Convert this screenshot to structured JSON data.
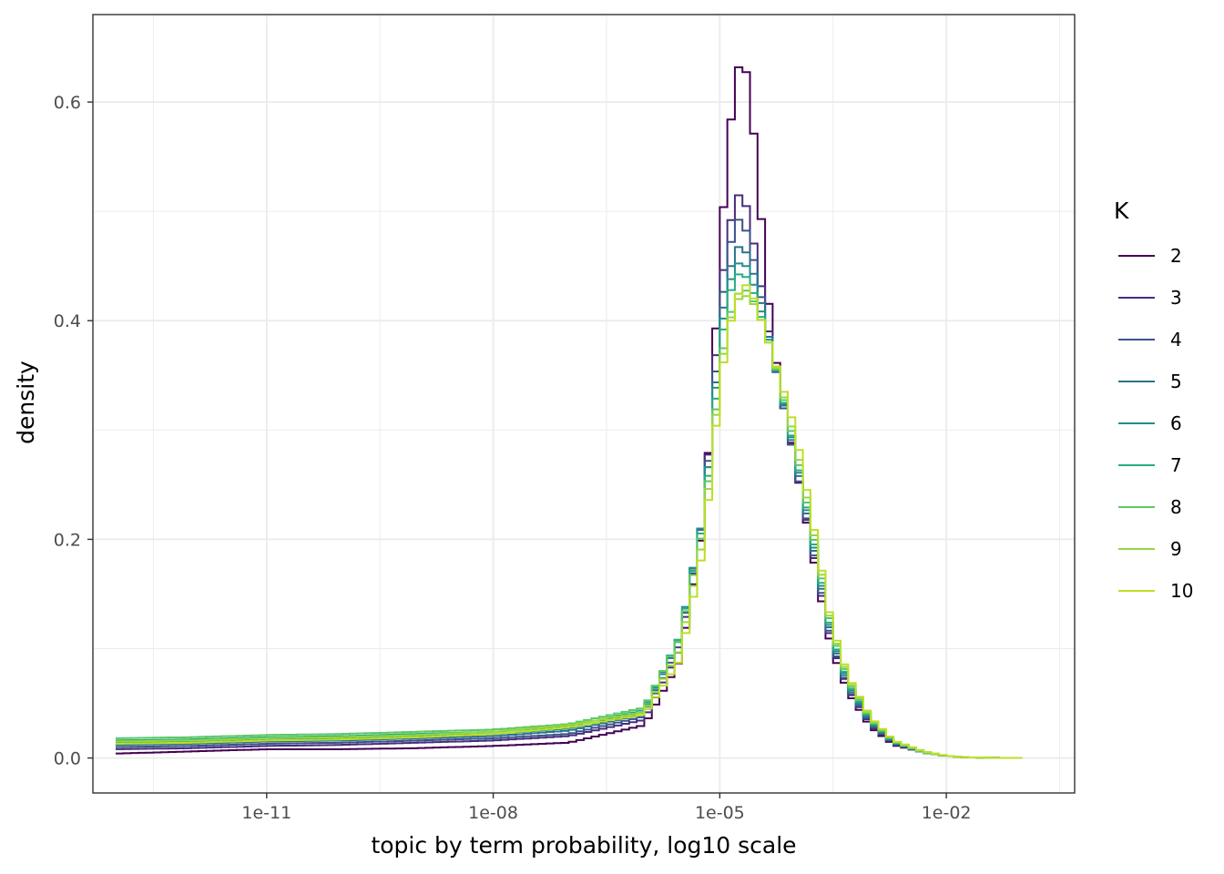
{
  "chart_data": {
    "type": "line",
    "xlabel": "topic by term probability, log10 scale",
    "ylabel": "density",
    "x_scale": "log10",
    "xlim": [
      5e-14,
      0.5
    ],
    "ylim": [
      -0.032,
      0.68
    ],
    "x_ticks": [
      {
        "value": 1e-11,
        "label": "1e-11"
      },
      {
        "value": 1e-08,
        "label": "1e-08"
      },
      {
        "value": 1e-05,
        "label": "1e-05"
      },
      {
        "value": 0.01,
        "label": "1e-02"
      }
    ],
    "y_ticks": [
      {
        "value": 0.0,
        "label": "0.0"
      },
      {
        "value": 0.2,
        "label": "0.2"
      },
      {
        "value": 0.4,
        "label": "0.4"
      },
      {
        "value": 0.6,
        "label": "0.6"
      }
    ],
    "grid": true,
    "legend": {
      "title": "K",
      "position": "right"
    },
    "series": [
      {
        "name": "2",
        "color": "#440154",
        "x": [
          1e-13,
          1e-12,
          1e-11,
          1e-10,
          1e-09,
          1e-08,
          1e-07,
          1e-06,
          3e-06,
          6e-06,
          8e-06,
          1e-05,
          1.3e-05,
          1.6e-05,
          2e-05,
          2.5e-05,
          3.2e-05,
          4e-05,
          5e-05,
          0.0001,
          0.0002,
          0.0003,
          0.0005,
          0.001,
          0.002,
          0.005,
          0.01,
          0.02,
          0.05,
          0.1
        ],
        "y": [
          0.004,
          0.006,
          0.008,
          0.008,
          0.009,
          0.011,
          0.014,
          0.03,
          0.09,
          0.21,
          0.33,
          0.46,
          0.56,
          0.62,
          0.645,
          0.61,
          0.53,
          0.45,
          0.38,
          0.27,
          0.16,
          0.1,
          0.06,
          0.028,
          0.012,
          0.005,
          0.002,
          0.0005,
          0.0001,
          0.0
        ]
      },
      {
        "name": "3",
        "color": "#472d7b",
        "x": [
          1e-13,
          1e-12,
          1e-11,
          1e-10,
          1e-09,
          1e-08,
          1e-07,
          1e-06,
          3e-06,
          6e-06,
          8e-06,
          1e-05,
          1.3e-05,
          1.6e-05,
          2e-05,
          2.5e-05,
          3.2e-05,
          4e-05,
          5e-05,
          0.0001,
          0.0002,
          0.0003,
          0.0005,
          0.001,
          0.002,
          0.005,
          0.01,
          0.02,
          0.05,
          0.1
        ],
        "y": [
          0.008,
          0.009,
          0.011,
          0.012,
          0.014,
          0.016,
          0.02,
          0.035,
          0.1,
          0.22,
          0.32,
          0.42,
          0.48,
          0.51,
          0.52,
          0.49,
          0.45,
          0.41,
          0.37,
          0.27,
          0.165,
          0.105,
          0.063,
          0.03,
          0.013,
          0.005,
          0.002,
          0.0005,
          0.0001,
          0.0
        ]
      },
      {
        "name": "4",
        "color": "#3b528b",
        "x": [
          1e-13,
          1e-12,
          1e-11,
          1e-10,
          1e-09,
          1e-08,
          1e-07,
          1e-06,
          3e-06,
          6e-06,
          8e-06,
          1e-05,
          1.3e-05,
          1.6e-05,
          2e-05,
          2.5e-05,
          3.2e-05,
          4e-05,
          5e-05,
          0.0001,
          0.0002,
          0.0003,
          0.0005,
          0.001,
          0.002,
          0.005,
          0.01,
          0.02,
          0.05,
          0.1
        ],
        "y": [
          0.01,
          0.011,
          0.013,
          0.014,
          0.016,
          0.018,
          0.022,
          0.038,
          0.105,
          0.22,
          0.31,
          0.4,
          0.46,
          0.49,
          0.495,
          0.47,
          0.44,
          0.4,
          0.37,
          0.27,
          0.168,
          0.107,
          0.064,
          0.031,
          0.013,
          0.005,
          0.002,
          0.0005,
          0.0001,
          0.0
        ]
      },
      {
        "name": "5",
        "color": "#2c728e",
        "x": [
          1e-13,
          1e-12,
          1e-11,
          1e-10,
          1e-09,
          1e-08,
          1e-07,
          1e-06,
          3e-06,
          6e-06,
          8e-06,
          1e-05,
          1.3e-05,
          1.6e-05,
          2e-05,
          2.5e-05,
          3.2e-05,
          4e-05,
          5e-05,
          0.0001,
          0.0002,
          0.0003,
          0.0005,
          0.001,
          0.002,
          0.005,
          0.01,
          0.02,
          0.05,
          0.1
        ],
        "y": [
          0.012,
          0.013,
          0.015,
          0.016,
          0.018,
          0.02,
          0.025,
          0.04,
          0.11,
          0.22,
          0.3,
          0.39,
          0.44,
          0.465,
          0.47,
          0.455,
          0.43,
          0.4,
          0.37,
          0.275,
          0.172,
          0.11,
          0.066,
          0.032,
          0.014,
          0.005,
          0.002,
          0.0005,
          0.0001,
          0.0
        ]
      },
      {
        "name": "6",
        "color": "#21908d",
        "x": [
          1e-13,
          1e-12,
          1e-11,
          1e-10,
          1e-09,
          1e-08,
          1e-07,
          1e-06,
          3e-06,
          6e-06,
          8e-06,
          1e-05,
          1.3e-05,
          1.6e-05,
          2e-05,
          2.5e-05,
          3.2e-05,
          4e-05,
          5e-05,
          0.0001,
          0.0002,
          0.0003,
          0.0005,
          0.001,
          0.002,
          0.005,
          0.01,
          0.02,
          0.05,
          0.1
        ],
        "y": [
          0.014,
          0.015,
          0.017,
          0.018,
          0.02,
          0.022,
          0.027,
          0.042,
          0.112,
          0.22,
          0.3,
          0.38,
          0.43,
          0.45,
          0.455,
          0.445,
          0.42,
          0.395,
          0.37,
          0.278,
          0.175,
          0.112,
          0.068,
          0.033,
          0.014,
          0.005,
          0.002,
          0.0005,
          0.0001,
          0.0
        ]
      },
      {
        "name": "7",
        "color": "#27ad81",
        "x": [
          1e-13,
          1e-12,
          1e-11,
          1e-10,
          1e-09,
          1e-08,
          1e-07,
          1e-06,
          3e-06,
          6e-06,
          8e-06,
          1e-05,
          1.3e-05,
          1.6e-05,
          2e-05,
          2.5e-05,
          3.2e-05,
          4e-05,
          5e-05,
          0.0001,
          0.0002,
          0.0003,
          0.0005,
          0.001,
          0.002,
          0.005,
          0.01,
          0.02,
          0.05,
          0.1
        ],
        "y": [
          0.016,
          0.017,
          0.019,
          0.02,
          0.022,
          0.024,
          0.029,
          0.044,
          0.112,
          0.215,
          0.29,
          0.37,
          0.42,
          0.44,
          0.445,
          0.435,
          0.415,
          0.39,
          0.37,
          0.28,
          0.178,
          0.114,
          0.069,
          0.034,
          0.015,
          0.005,
          0.002,
          0.0005,
          0.0001,
          0.0
        ]
      },
      {
        "name": "8",
        "color": "#5cc863",
        "x": [
          1e-13,
          1e-12,
          1e-11,
          1e-10,
          1e-09,
          1e-08,
          1e-07,
          1e-06,
          3e-06,
          6e-06,
          8e-06,
          1e-05,
          1.3e-05,
          1.6e-05,
          2e-05,
          2.5e-05,
          3.2e-05,
          4e-05,
          5e-05,
          0.0001,
          0.0002,
          0.0003,
          0.0005,
          0.001,
          0.002,
          0.005,
          0.01,
          0.02,
          0.05,
          0.1
        ],
        "y": [
          0.018,
          0.019,
          0.021,
          0.022,
          0.024,
          0.026,
          0.031,
          0.046,
          0.11,
          0.21,
          0.285,
          0.355,
          0.4,
          0.42,
          0.43,
          0.425,
          0.41,
          0.39,
          0.37,
          0.285,
          0.182,
          0.118,
          0.071,
          0.035,
          0.015,
          0.005,
          0.002,
          0.0005,
          0.0001,
          0.0
        ]
      },
      {
        "name": "9",
        "color": "#95d840",
        "x": [
          1e-13,
          1e-12,
          1e-11,
          1e-10,
          1e-09,
          1e-08,
          1e-07,
          1e-06,
          3e-06,
          6e-06,
          8e-06,
          1e-05,
          1.3e-05,
          1.6e-05,
          2e-05,
          2.5e-05,
          3.2e-05,
          4e-05,
          5e-05,
          0.0001,
          0.0002,
          0.0003,
          0.0005,
          0.001,
          0.002,
          0.005,
          0.01,
          0.02,
          0.05,
          0.1
        ],
        "y": [
          0.015,
          0.016,
          0.018,
          0.019,
          0.021,
          0.024,
          0.03,
          0.042,
          0.1,
          0.2,
          0.28,
          0.35,
          0.395,
          0.415,
          0.425,
          0.42,
          0.41,
          0.39,
          0.37,
          0.29,
          0.186,
          0.12,
          0.073,
          0.036,
          0.016,
          0.006,
          0.002,
          0.0005,
          0.0001,
          0.0
        ]
      },
      {
        "name": "10",
        "color": "#bddf26",
        "x": [
          1e-13,
          1e-12,
          1e-11,
          1e-10,
          1e-09,
          1e-08,
          1e-07,
          1e-06,
          3e-06,
          6e-06,
          8e-06,
          1e-05,
          1.3e-05,
          1.6e-05,
          2e-05,
          2.5e-05,
          3.2e-05,
          4e-05,
          5e-05,
          0.0001,
          0.0002,
          0.0003,
          0.0005,
          0.001,
          0.002,
          0.005,
          0.01,
          0.02,
          0.05,
          0.1
        ],
        "y": [
          0.013,
          0.014,
          0.016,
          0.017,
          0.019,
          0.022,
          0.028,
          0.04,
          0.09,
          0.19,
          0.27,
          0.34,
          0.39,
          0.415,
          0.435,
          0.43,
          0.41,
          0.39,
          0.37,
          0.3,
          0.19,
          0.123,
          0.075,
          0.037,
          0.016,
          0.006,
          0.002,
          0.0005,
          0.0001,
          0.0
        ]
      }
    ]
  }
}
